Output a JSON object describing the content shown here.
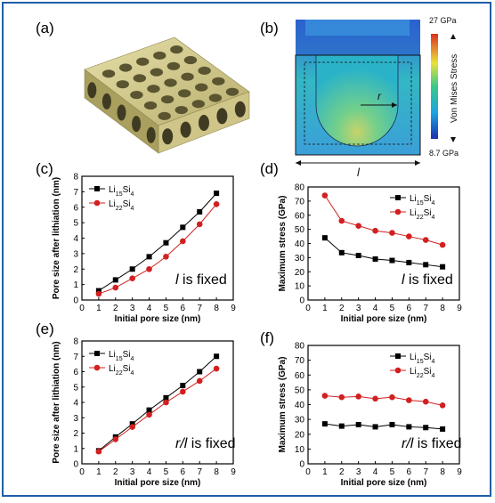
{
  "labels": {
    "a": "(a)",
    "b": "(b)",
    "c": "(c)",
    "d": "(d)",
    "e": "(e)",
    "f": "(f)"
  },
  "panel_b": {
    "max": "27 GPa",
    "min": "8.7 GPa",
    "colorbar_title": "Von Mises Stress",
    "r_label": "r",
    "l_label": "l"
  },
  "colors": {
    "frame": "#1f5fa8",
    "black_series": "#000000",
    "red_series": "#d22020"
  },
  "chart_data": [
    {
      "id": "c",
      "type": "line",
      "ylabel": "Pore size after lithiation (nm)",
      "xlabel": "Initial pore size (nm)",
      "xlim": [
        0,
        9
      ],
      "ylim": [
        0,
        8
      ],
      "xticks": [
        0,
        1,
        2,
        3,
        4,
        5,
        6,
        7,
        8,
        9
      ],
      "yticks": [
        0,
        1,
        2,
        3,
        4,
        5,
        6,
        7,
        8
      ],
      "annotation_prefix": "l",
      "annotation": " is fixed",
      "legend": "top-left",
      "series": [
        {
          "name": "Li15Si4",
          "marker": "square",
          "color": "#000000",
          "x": [
            1,
            2,
            3,
            4,
            5,
            6,
            7,
            8
          ],
          "y": [
            0.6,
            1.3,
            2.0,
            2.8,
            3.7,
            4.7,
            5.7,
            6.9
          ]
        },
        {
          "name": "Li22Si4",
          "marker": "circle",
          "color": "#d22020",
          "x": [
            1,
            2,
            3,
            4,
            5,
            6,
            7,
            8
          ],
          "y": [
            0.4,
            0.8,
            1.4,
            2.0,
            2.8,
            3.8,
            4.9,
            6.2
          ]
        }
      ]
    },
    {
      "id": "d",
      "type": "line",
      "ylabel": "Maximum stress (GPa)",
      "xlabel": "Initial pore size (nm)",
      "xlim": [
        0,
        9
      ],
      "ylim": [
        0,
        80
      ],
      "xticks": [
        0,
        1,
        2,
        3,
        4,
        5,
        6,
        7,
        8,
        9
      ],
      "yticks": [
        0,
        10,
        20,
        30,
        40,
        50,
        60,
        70,
        80
      ],
      "annotation_prefix": "l",
      "annotation": " is fixed",
      "legend": "top-right",
      "series": [
        {
          "name": "Li15Si4",
          "marker": "square",
          "color": "#000000",
          "x": [
            1,
            2,
            3,
            4,
            5,
            6,
            7,
            8
          ],
          "y": [
            44,
            33.5,
            31.5,
            29,
            28,
            26.5,
            25,
            23.5
          ]
        },
        {
          "name": "Li22Si4",
          "marker": "circle",
          "color": "#d22020",
          "x": [
            1,
            2,
            3,
            4,
            5,
            6,
            7,
            8
          ],
          "y": [
            74,
            56,
            52.5,
            49,
            47.5,
            45,
            42.5,
            39
          ]
        }
      ]
    },
    {
      "id": "e",
      "type": "line",
      "ylabel": "Pore size after lithiation (nm)",
      "xlabel": "Initial pore size (nm)",
      "xlim": [
        0,
        9
      ],
      "ylim": [
        0,
        8
      ],
      "xticks": [
        0,
        1,
        2,
        3,
        4,
        5,
        6,
        7,
        8,
        9
      ],
      "yticks": [
        0,
        1,
        2,
        3,
        4,
        5,
        6,
        7,
        8
      ],
      "annotation_prefix": "r/l",
      "annotation": " is fixed",
      "legend": "top-left",
      "series": [
        {
          "name": "Li15Si4",
          "marker": "square",
          "color": "#000000",
          "x": [
            1,
            2,
            3,
            4,
            5,
            6,
            7,
            8
          ],
          "y": [
            0.85,
            1.75,
            2.6,
            3.5,
            4.3,
            5.1,
            6.0,
            7.0
          ]
        },
        {
          "name": "Li22Si4",
          "marker": "circle",
          "color": "#d22020",
          "x": [
            1,
            2,
            3,
            4,
            5,
            6,
            7,
            8
          ],
          "y": [
            0.8,
            1.6,
            2.4,
            3.2,
            4.0,
            4.7,
            5.4,
            6.2
          ]
        }
      ]
    },
    {
      "id": "f",
      "type": "line",
      "ylabel": "Maximum stress (GPa)",
      "xlabel": "Initial pore size (nm)",
      "xlim": [
        0,
        9
      ],
      "ylim": [
        0,
        80
      ],
      "xticks": [
        0,
        1,
        2,
        3,
        4,
        5,
        6,
        7,
        8,
        9
      ],
      "yticks": [
        0,
        10,
        20,
        30,
        40,
        50,
        60,
        70,
        80
      ],
      "annotation_prefix": "r/l",
      "annotation": " is fixed",
      "legend": "top-right",
      "series": [
        {
          "name": "Li15Si4",
          "marker": "square",
          "color": "#000000",
          "x": [
            1,
            2,
            3,
            4,
            5,
            6,
            7,
            8
          ],
          "y": [
            27,
            25.5,
            26.5,
            25,
            26.5,
            25,
            24.5,
            23.5
          ]
        },
        {
          "name": "Li22Si4",
          "marker": "circle",
          "color": "#d22020",
          "x": [
            1,
            2,
            3,
            4,
            5,
            6,
            7,
            8
          ],
          "y": [
            46,
            45,
            45.5,
            44,
            45,
            43,
            42,
            39.5
          ]
        }
      ]
    }
  ]
}
